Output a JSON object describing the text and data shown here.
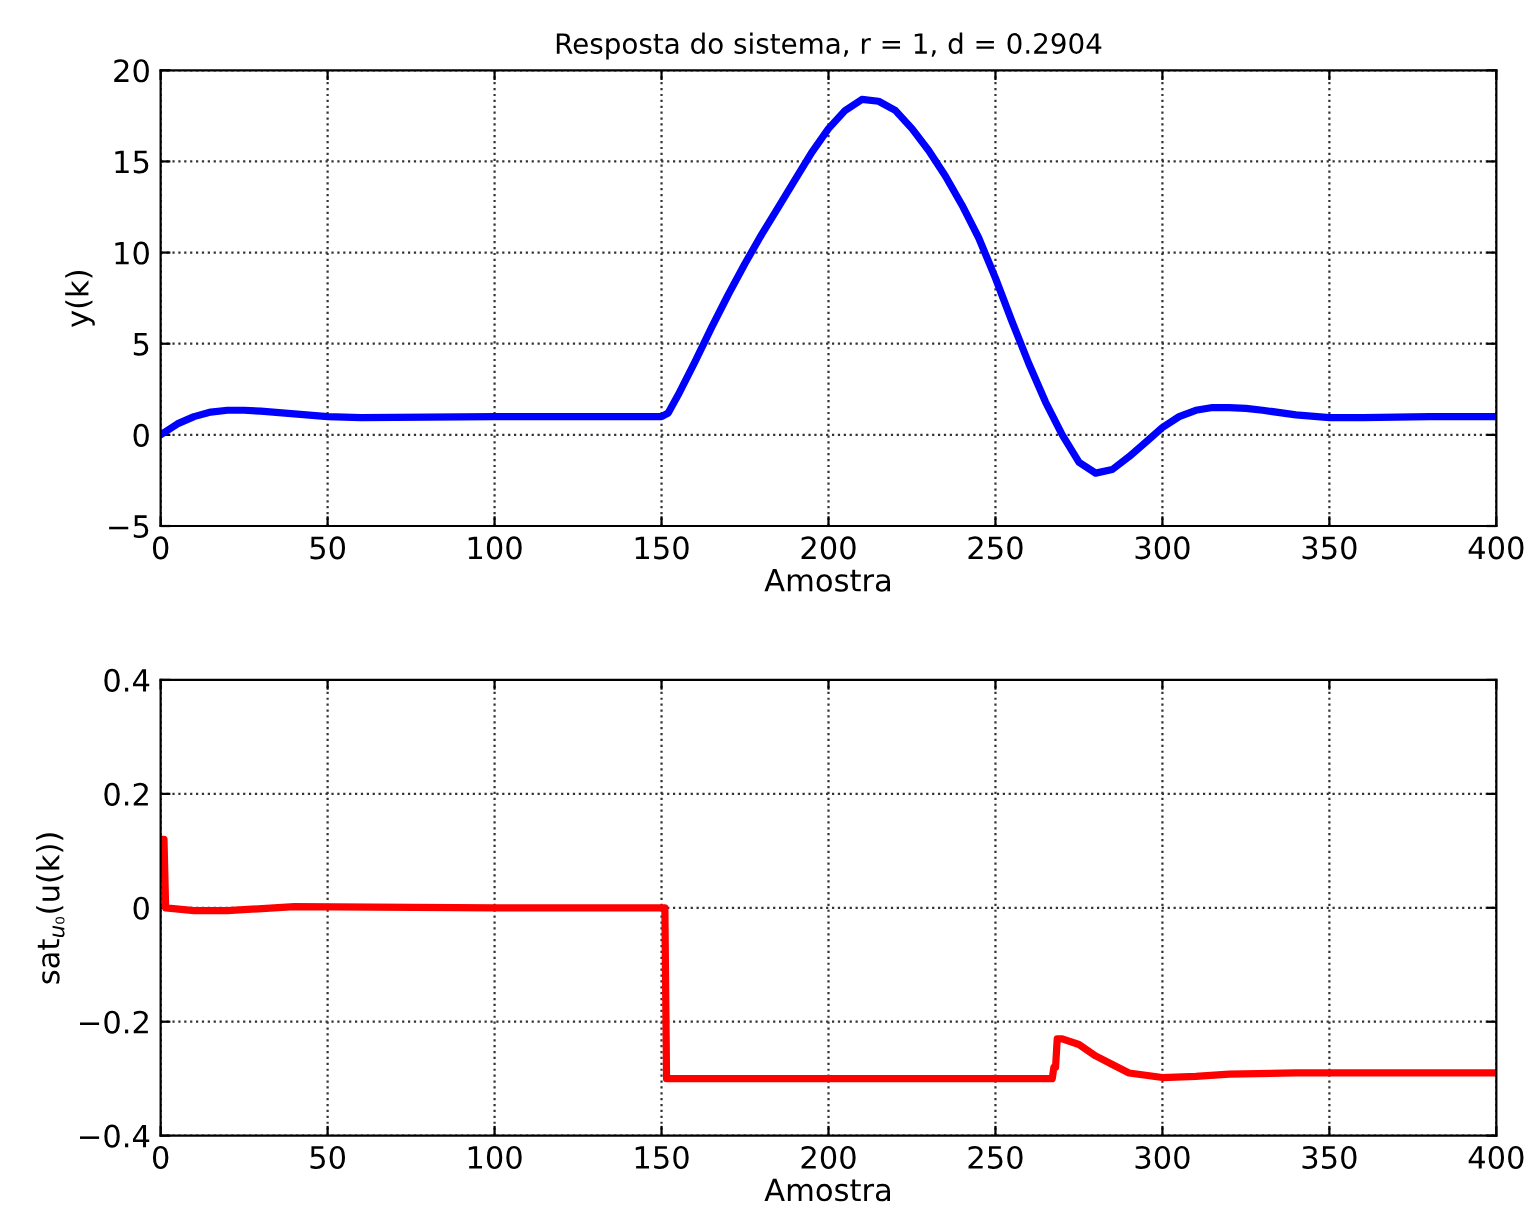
{
  "chart_data": [
    {
      "type": "line",
      "title": "Resposta do sistema, r = 1, d = 0.2904",
      "xlabel": "Amostra",
      "ylabel": "y(k)",
      "xlim": [
        0,
        400
      ],
      "ylim": [
        -5,
        20
      ],
      "xticks": [
        0,
        50,
        100,
        150,
        200,
        250,
        300,
        350,
        400
      ],
      "yticks": [
        {
          "value": -5,
          "label": "−5"
        },
        0,
        5,
        10,
        15,
        20
      ],
      "grid": true,
      "line_style": "solid",
      "marker": "none",
      "series": [
        {
          "color": "#0000ff",
          "x": [
            0,
            5,
            10,
            15,
            20,
            25,
            30,
            40,
            50,
            60,
            80,
            100,
            150,
            152,
            155,
            160,
            165,
            170,
            175,
            180,
            185,
            190,
            195,
            200,
            205,
            210,
            215,
            220,
            225,
            230,
            235,
            240,
            245,
            250,
            255,
            260,
            265,
            270,
            275,
            280,
            285,
            290,
            295,
            300,
            305,
            310,
            315,
            320,
            325,
            330,
            340,
            350,
            360,
            380,
            400
          ],
          "values": [
            0,
            0.6,
            1.0,
            1.25,
            1.35,
            1.35,
            1.3,
            1.15,
            1.0,
            0.95,
            0.97,
            1.0,
            1.0,
            1.2,
            2.2,
            4.0,
            5.9,
            7.7,
            9.4,
            11.0,
            12.5,
            14.0,
            15.5,
            16.8,
            17.8,
            18.4,
            18.3,
            17.8,
            16.8,
            15.6,
            14.2,
            12.6,
            10.8,
            8.6,
            6.2,
            3.9,
            1.8,
            0,
            -1.5,
            -2.1,
            -1.9,
            -1.2,
            -0.4,
            0.4,
            1.0,
            1.35,
            1.5,
            1.5,
            1.45,
            1.35,
            1.1,
            0.95,
            0.95,
            1.0,
            1.0
          ]
        }
      ]
    },
    {
      "type": "line",
      "xlabel": "Amostra",
      "ylabel": "sat$_{u₀}$(u(k))",
      "xlim": [
        0,
        400
      ],
      "ylim": [
        -0.4,
        0.4
      ],
      "xticks": [
        0,
        50,
        100,
        150,
        200,
        250,
        300,
        350,
        400
      ],
      "yticks": [
        {
          "value": -0.4,
          "label": "−0.4"
        },
        {
          "value": -0.2,
          "label": "−0.2"
        },
        0,
        0.2,
        0.4
      ],
      "grid": true,
      "line_style": "solid",
      "marker": "none",
      "series": [
        {
          "color": "#ff0000",
          "x": [
            0,
            1,
            1.5,
            10,
            20,
            40,
            100,
            151,
            151.5,
            267,
            267.5,
            268,
            268.5,
            270,
            275,
            280,
            285,
            290,
            300,
            310,
            320,
            340,
            400
          ],
          "values": [
            0.12,
            0.12,
            0,
            -0.005,
            -0.005,
            0.002,
            0,
            0,
            -0.3,
            -0.3,
            -0.28,
            -0.28,
            -0.23,
            -0.23,
            -0.24,
            -0.26,
            -0.275,
            -0.29,
            -0.298,
            -0.296,
            -0.292,
            -0.29,
            -0.29
          ]
        }
      ]
    }
  ]
}
